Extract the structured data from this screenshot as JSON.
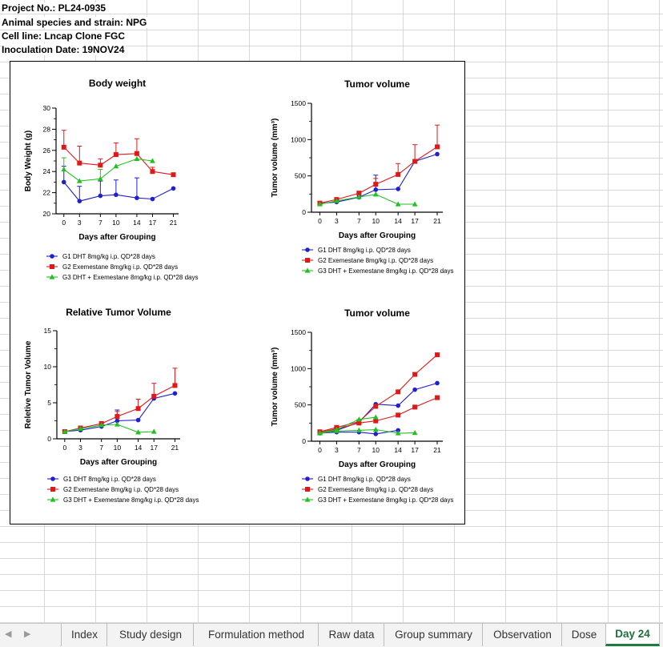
{
  "sheet": {
    "header_lines": [
      "Project No.:  PL24-0935",
      "Animal species and strain: NPG",
      "Cell line: Lncap Clone FGC",
      "Inoculation Date: 19NOV24"
    ]
  },
  "tabs": {
    "items": [
      "Index",
      "Study design",
      "Formulation method",
      "Raw data",
      "Group summary",
      "Observation",
      "Dose",
      "Day 24"
    ],
    "active": "Day 24"
  },
  "colors": {
    "G1": "#1f1fd0",
    "G2": "#e01818",
    "G3": "#22c022"
  },
  "chart_data": [
    {
      "type": "line",
      "title": "Body weight",
      "xlabel": "Days after Grouping",
      "ylabel": "Body Weight (g)",
      "x": [
        0,
        3,
        7,
        10,
        14,
        17,
        21
      ],
      "xlim": [
        -1.5,
        22
      ],
      "ylim": [
        20,
        30
      ],
      "yticks": [
        20,
        22,
        24,
        26,
        28,
        30
      ],
      "legend": "bottom",
      "series": [
        {
          "name": "G1 DHT 8mg/kg i.p. QD*28 days",
          "marker": "circle",
          "values": [
            23.0,
            21.2,
            21.7,
            21.8,
            21.5,
            21.4,
            22.4
          ],
          "errors": [
            1.5,
            1.4,
            1.4,
            1.4,
            1.9,
            0,
            0
          ]
        },
        {
          "name": "G2 Exemestane 8mg/kg i.p. QD*28 days",
          "marker": "square",
          "values": [
            26.3,
            24.8,
            24.6,
            25.6,
            25.7,
            24.0,
            23.7
          ],
          "errors": [
            1.6,
            1.6,
            0.6,
            1.1,
            1.4,
            0.4,
            0
          ]
        },
        {
          "name": "G3 DHT + Exemestane 8mg/kg i.p. QD*28 days",
          "marker": "triangle",
          "values": [
            24.2,
            23.1,
            23.3,
            24.5,
            25.2,
            25.0,
            null
          ],
          "errors": [
            1.1,
            0,
            0.9,
            0,
            0,
            0,
            0
          ]
        }
      ]
    },
    {
      "type": "line",
      "title": "Tumor volume",
      "xlabel": "Days after Grouping",
      "ylabel": "Tumor volume (mm³)",
      "x": [
        0,
        3,
        7,
        10,
        14,
        17,
        21
      ],
      "xlim": [
        -1.5,
        22
      ],
      "ylim": [
        0,
        1500
      ],
      "yticks": [
        0,
        500,
        1000,
        1500
      ],
      "legend": "bottom",
      "series": [
        {
          "name": "G1 DHT 8mg/kg i.p. QD*28 days",
          "marker": "circle",
          "values": [
            120,
            140,
            205,
            310,
            320,
            700,
            800
          ],
          "errors": [
            0,
            0,
            0,
            200,
            0,
            0,
            0
          ]
        },
        {
          "name": "G2 Exemestane 8mg/kg i.p. QD*28 days",
          "marker": "square",
          "values": [
            125,
            175,
            260,
            385,
            520,
            700,
            900
          ],
          "errors": [
            0,
            0,
            30,
            80,
            150,
            230,
            300
          ]
        },
        {
          "name": "G3 DHT + Exemestane 8mg/kg i.p. QD*28 days",
          "marker": "triangle",
          "values": [
            110,
            155,
            210,
            245,
            110,
            110,
            null
          ],
          "errors": [
            0,
            0,
            0,
            0,
            0,
            0,
            0
          ]
        }
      ]
    },
    {
      "type": "line",
      "title": "Relative Tumor Volume",
      "xlabel": "Days after Grouping",
      "ylabel": "Reletive Tumor Volume",
      "x": [
        0,
        3,
        7,
        10,
        14,
        17,
        21
      ],
      "xlim": [
        -1.5,
        22
      ],
      "ylim": [
        0,
        15
      ],
      "yticks": [
        0,
        5,
        10,
        15
      ],
      "legend": "bottom",
      "series": [
        {
          "name": "G1 DHT 8mg/kg i.p. QD*28 days",
          "marker": "circle",
          "values": [
            1.0,
            1.2,
            1.7,
            2.5,
            2.6,
            5.6,
            6.3
          ],
          "errors": [
            0,
            0,
            0,
            1.5,
            0,
            0,
            0
          ]
        },
        {
          "name": "G2 Exemestane 8mg/kg i.p. QD*28 days",
          "marker": "square",
          "values": [
            1.0,
            1.5,
            2.1,
            3.1,
            4.2,
            5.9,
            7.4
          ],
          "errors": [
            0,
            0,
            0.3,
            0.7,
            1.3,
            1.8,
            2.4
          ]
        },
        {
          "name": "G3 DHT + Exemestane 8mg/kg i.p. QD*28 days",
          "marker": "triangle",
          "values": [
            1.0,
            1.4,
            1.9,
            2.0,
            0.9,
            1.0,
            null
          ],
          "errors": [
            0,
            0,
            0,
            0,
            0,
            0,
            0
          ]
        }
      ]
    },
    {
      "type": "line",
      "title": "Tumor volume",
      "xlabel": "Days after Grouping",
      "ylabel": "Tumor volume (mm³)",
      "x": [
        0,
        3,
        7,
        10,
        14,
        17,
        21
      ],
      "xlim": [
        -1.5,
        22
      ],
      "ylim": [
        0,
        1500
      ],
      "yticks": [
        0,
        500,
        1000,
        1500
      ],
      "legend": "bottom",
      "note": "individual animal curves",
      "series": [
        {
          "name": "G1 DHT 8mg/kg i.p. QD*28 days",
          "marker": "circle",
          "values": [
            120,
            150,
            260,
            510,
            490,
            710,
            800
          ]
        },
        {
          "name": "G1 DHT 8mg/kg i.p. QD*28 days",
          "marker": "circle",
          "values": [
            110,
            125,
            125,
            100,
            150,
            null,
            null
          ],
          "legend": false
        },
        {
          "name": "G2 Exemestane 8mg/kg i.p. QD*28 days",
          "marker": "square",
          "values": [
            130,
            190,
            270,
            480,
            680,
            920,
            1190
          ]
        },
        {
          "name": "G2 Exemestane 8mg/kg i.p. QD*28 days",
          "marker": "square",
          "values": [
            120,
            170,
            250,
            280,
            360,
            470,
            600
          ],
          "legend": false
        },
        {
          "name": "G3 DHT + Exemestane 8mg/kg i.p. QD*28 days",
          "marker": "triangle",
          "values": [
            115,
            160,
            300,
            330,
            null,
            null,
            null
          ]
        },
        {
          "name": "G3 DHT + Exemestane 8mg/kg i.p. QD*28 days",
          "marker": "triangle",
          "values": [
            110,
            140,
            150,
            160,
            110,
            115,
            null
          ],
          "legend": false
        }
      ]
    }
  ]
}
